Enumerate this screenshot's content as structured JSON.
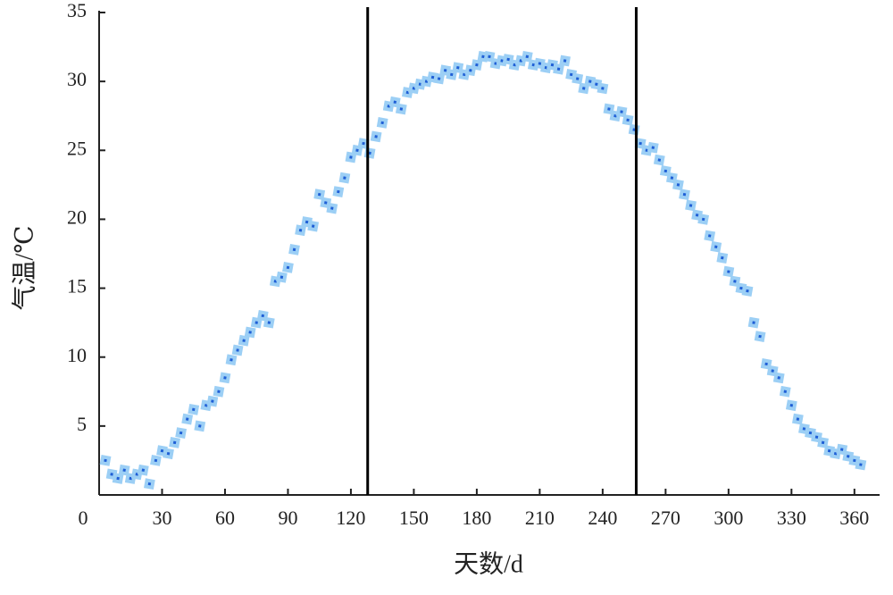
{
  "chart_data": {
    "type": "scatter",
    "x_label": "天数/d",
    "y_label": "气温/℃",
    "x": [
      3,
      6,
      9,
      12,
      15,
      18,
      21,
      24,
      27,
      30,
      33,
      36,
      39,
      42,
      45,
      48,
      51,
      54,
      57,
      60,
      63,
      66,
      69,
      72,
      75,
      78,
      81,
      84,
      87,
      90,
      93,
      96,
      99,
      102,
      105,
      108,
      111,
      114,
      117,
      120,
      123,
      126,
      129,
      132,
      135,
      138,
      141,
      144,
      147,
      150,
      153,
      156,
      159,
      162,
      165,
      168,
      171,
      174,
      177,
      180,
      183,
      186,
      189,
      192,
      195,
      198,
      201,
      204,
      207,
      210,
      213,
      216,
      219,
      222,
      225,
      228,
      231,
      234,
      237,
      240,
      243,
      246,
      249,
      252,
      255,
      258,
      261,
      264,
      267,
      270,
      273,
      276,
      279,
      282,
      285,
      288,
      291,
      294,
      297,
      300,
      303,
      306,
      309,
      312,
      315,
      318,
      321,
      324,
      327,
      330,
      333,
      336,
      339,
      342,
      345,
      348,
      351,
      354,
      357,
      360,
      363
    ],
    "values": [
      2.5,
      1.5,
      1.2,
      1.8,
      1.2,
      1.5,
      1.8,
      0.8,
      2.5,
      3.2,
      3.0,
      3.8,
      4.5,
      5.5,
      6.2,
      5.0,
      6.5,
      6.8,
      7.5,
      8.5,
      9.8,
      10.5,
      11.2,
      11.8,
      12.5,
      13.0,
      12.5,
      15.5,
      15.8,
      16.5,
      17.8,
      19.2,
      19.8,
      19.5,
      21.8,
      21.2,
      20.8,
      22.0,
      23.0,
      24.5,
      25.0,
      25.5,
      24.8,
      26.0,
      27.0,
      28.2,
      28.5,
      28.0,
      29.2,
      29.5,
      29.8,
      30.0,
      30.3,
      30.2,
      30.8,
      30.5,
      31.0,
      30.5,
      30.8,
      31.2,
      31.8,
      31.8,
      31.3,
      31.5,
      31.6,
      31.2,
      31.5,
      31.8,
      31.2,
      31.3,
      31.0,
      31.2,
      30.9,
      31.5,
      30.5,
      30.2,
      29.5,
      30.0,
      29.8,
      29.5,
      28.0,
      27.5,
      27.8,
      27.2,
      26.5,
      25.5,
      25.0,
      25.2,
      24.3,
      23.5,
      23.0,
      22.5,
      21.8,
      21.0,
      20.3,
      20.0,
      18.8,
      18.0,
      17.2,
      16.2,
      15.5,
      15.0,
      14.8,
      12.5,
      11.5,
      9.5,
      9.0,
      8.5,
      7.5,
      6.5,
      5.5,
      4.8,
      4.5,
      4.2,
      3.8,
      3.2,
      3.0,
      3.3,
      2.8,
      2.5,
      2.2
    ],
    "color": "#1f5fd6",
    "edge_color": "#9ccff5",
    "vlines": [
      128,
      256
    ],
    "vline_color": "#000000",
    "xlim": [
      0,
      372
    ],
    "ylim": [
      0,
      35
    ],
    "xticks": [
      0,
      30,
      60,
      90,
      120,
      150,
      180,
      210,
      240,
      270,
      300,
      330,
      360
    ],
    "yticks": [
      5,
      10,
      15,
      20,
      25,
      30,
      35
    ]
  }
}
